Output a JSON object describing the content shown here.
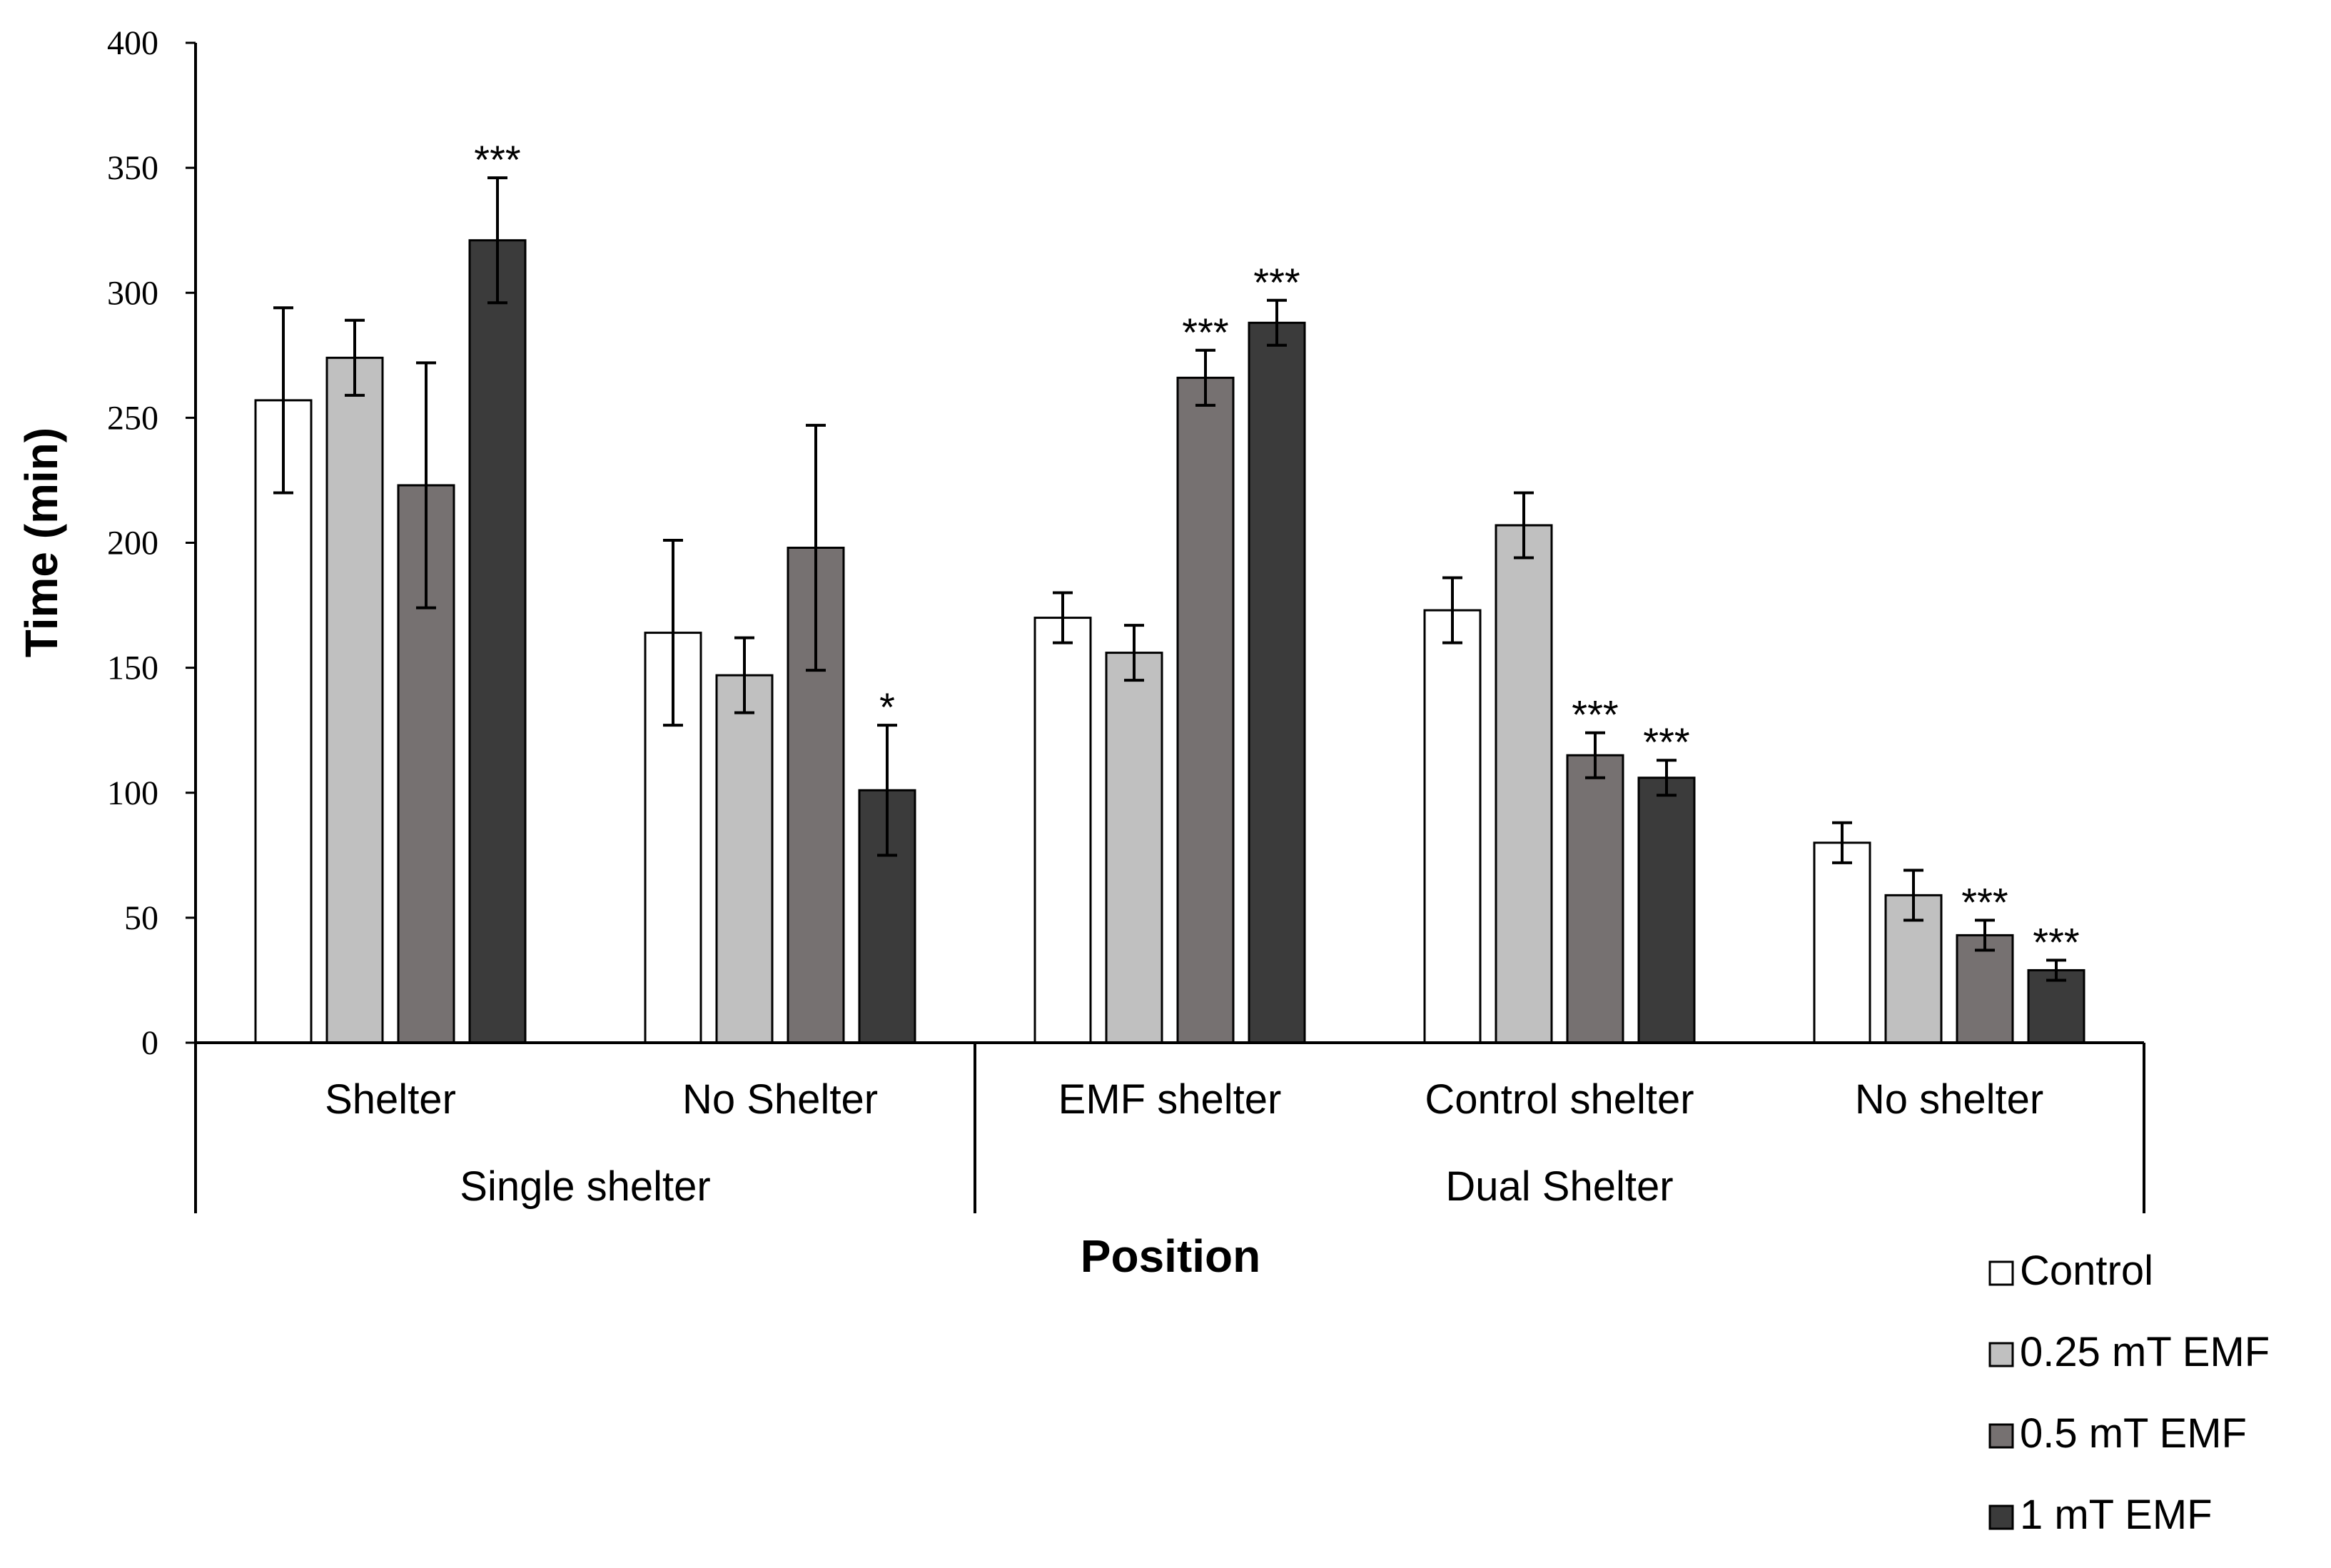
{
  "chart_data": {
    "type": "bar",
    "ylabel": "Time (min)",
    "xlabel": "Position",
    "ylim": [
      0,
      400
    ],
    "yticks": [
      0,
      50,
      100,
      150,
      200,
      250,
      300,
      350,
      400
    ],
    "groups": [
      {
        "label": "Single shelter",
        "categories": [
          "Shelter",
          "No Shelter"
        ]
      },
      {
        "label": "Dual Shelter",
        "categories": [
          "EMF shelter",
          "Control shelter",
          "No shelter"
        ]
      }
    ],
    "categories": [
      "Shelter",
      "No Shelter",
      "EMF shelter",
      "Control shelter",
      "No shelter"
    ],
    "series": [
      {
        "name": "Control",
        "color": "#ffffff",
        "values": [
          257,
          164,
          170,
          173,
          80
        ],
        "errors": [
          37,
          37,
          10,
          13,
          8
        ],
        "annotations": [
          "",
          "",
          "",
          "",
          ""
        ]
      },
      {
        "name": "0.25 mT EMF",
        "color": "#c0c0c0",
        "values": [
          274,
          147,
          156,
          207,
          59
        ],
        "errors": [
          15,
          15,
          11,
          13,
          10
        ],
        "annotations": [
          "",
          "",
          "",
          "",
          ""
        ]
      },
      {
        "name": "0.5 mT EMF",
        "color": "#767171",
        "values": [
          223,
          198,
          266,
          115,
          43
        ],
        "errors": [
          49,
          49,
          11,
          9,
          6
        ],
        "annotations": [
          "",
          "",
          "***",
          "***",
          "***"
        ]
      },
      {
        "name": "1 mT EMF",
        "color": "#3b3b3b",
        "values": [
          321,
          101,
          288,
          106,
          29
        ],
        "errors": [
          25,
          26,
          9,
          7,
          4
        ],
        "annotations": [
          "***",
          "*",
          "***",
          "***",
          "***"
        ]
      }
    ],
    "legend_position": "bottom-right"
  }
}
